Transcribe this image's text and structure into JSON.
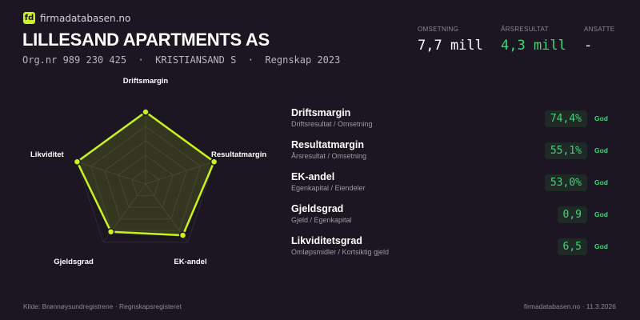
{
  "brand": {
    "logo": "fd",
    "name": "firmadatabasen.no",
    "accent": "#c8f31d"
  },
  "company": {
    "name": "LILLESAND APARTMENTS AS",
    "subtitle": "Org.nr 989 230 425  ·  KRISTIANSAND S  ·  Regnskap 2023"
  },
  "kpis": [
    {
      "label": "OMSETNING",
      "value": "7,7 mill",
      "color": "#ffffff"
    },
    {
      "label": "ÅRSRESULTAT",
      "value": "4,3 mill",
      "color": "#3fd47a"
    },
    {
      "label": "ANSATTE",
      "value": "-",
      "color": "#ffffff"
    }
  ],
  "radar": {
    "axes": [
      "Driftsmargin",
      "Resultatmargin",
      "EK-andel",
      "Gjeldsgrad",
      "Likviditet"
    ],
    "scores": [
      1.0,
      1.0,
      0.88,
      0.82,
      1.0
    ],
    "rings": 5
  },
  "ratios": [
    {
      "name": "Driftsmargin",
      "desc": "Driftsresultat / Omsetning",
      "value": "74,4%",
      "rating": "God"
    },
    {
      "name": "Resultatmargin",
      "desc": "Årsresultat / Omsetning",
      "value": "55,1%",
      "rating": "God"
    },
    {
      "name": "EK-andel",
      "desc": "Egenkapital / Eiendeler",
      "value": "53,0%",
      "rating": "God"
    },
    {
      "name": "Gjeldsgrad",
      "desc": "Gjeld / Egenkapital",
      "value": "0,9",
      "rating": "God"
    },
    {
      "name": "Likviditetsgrad",
      "desc": "Omløpsmidler / Kortsiktig gjeld",
      "value": "6,5",
      "rating": "God"
    }
  ],
  "footer": {
    "source": "Kilde: Brønnøysundregistrene · Regnskapsregisteret",
    "site": "firmadatabasen.no · 11.3.2026"
  }
}
